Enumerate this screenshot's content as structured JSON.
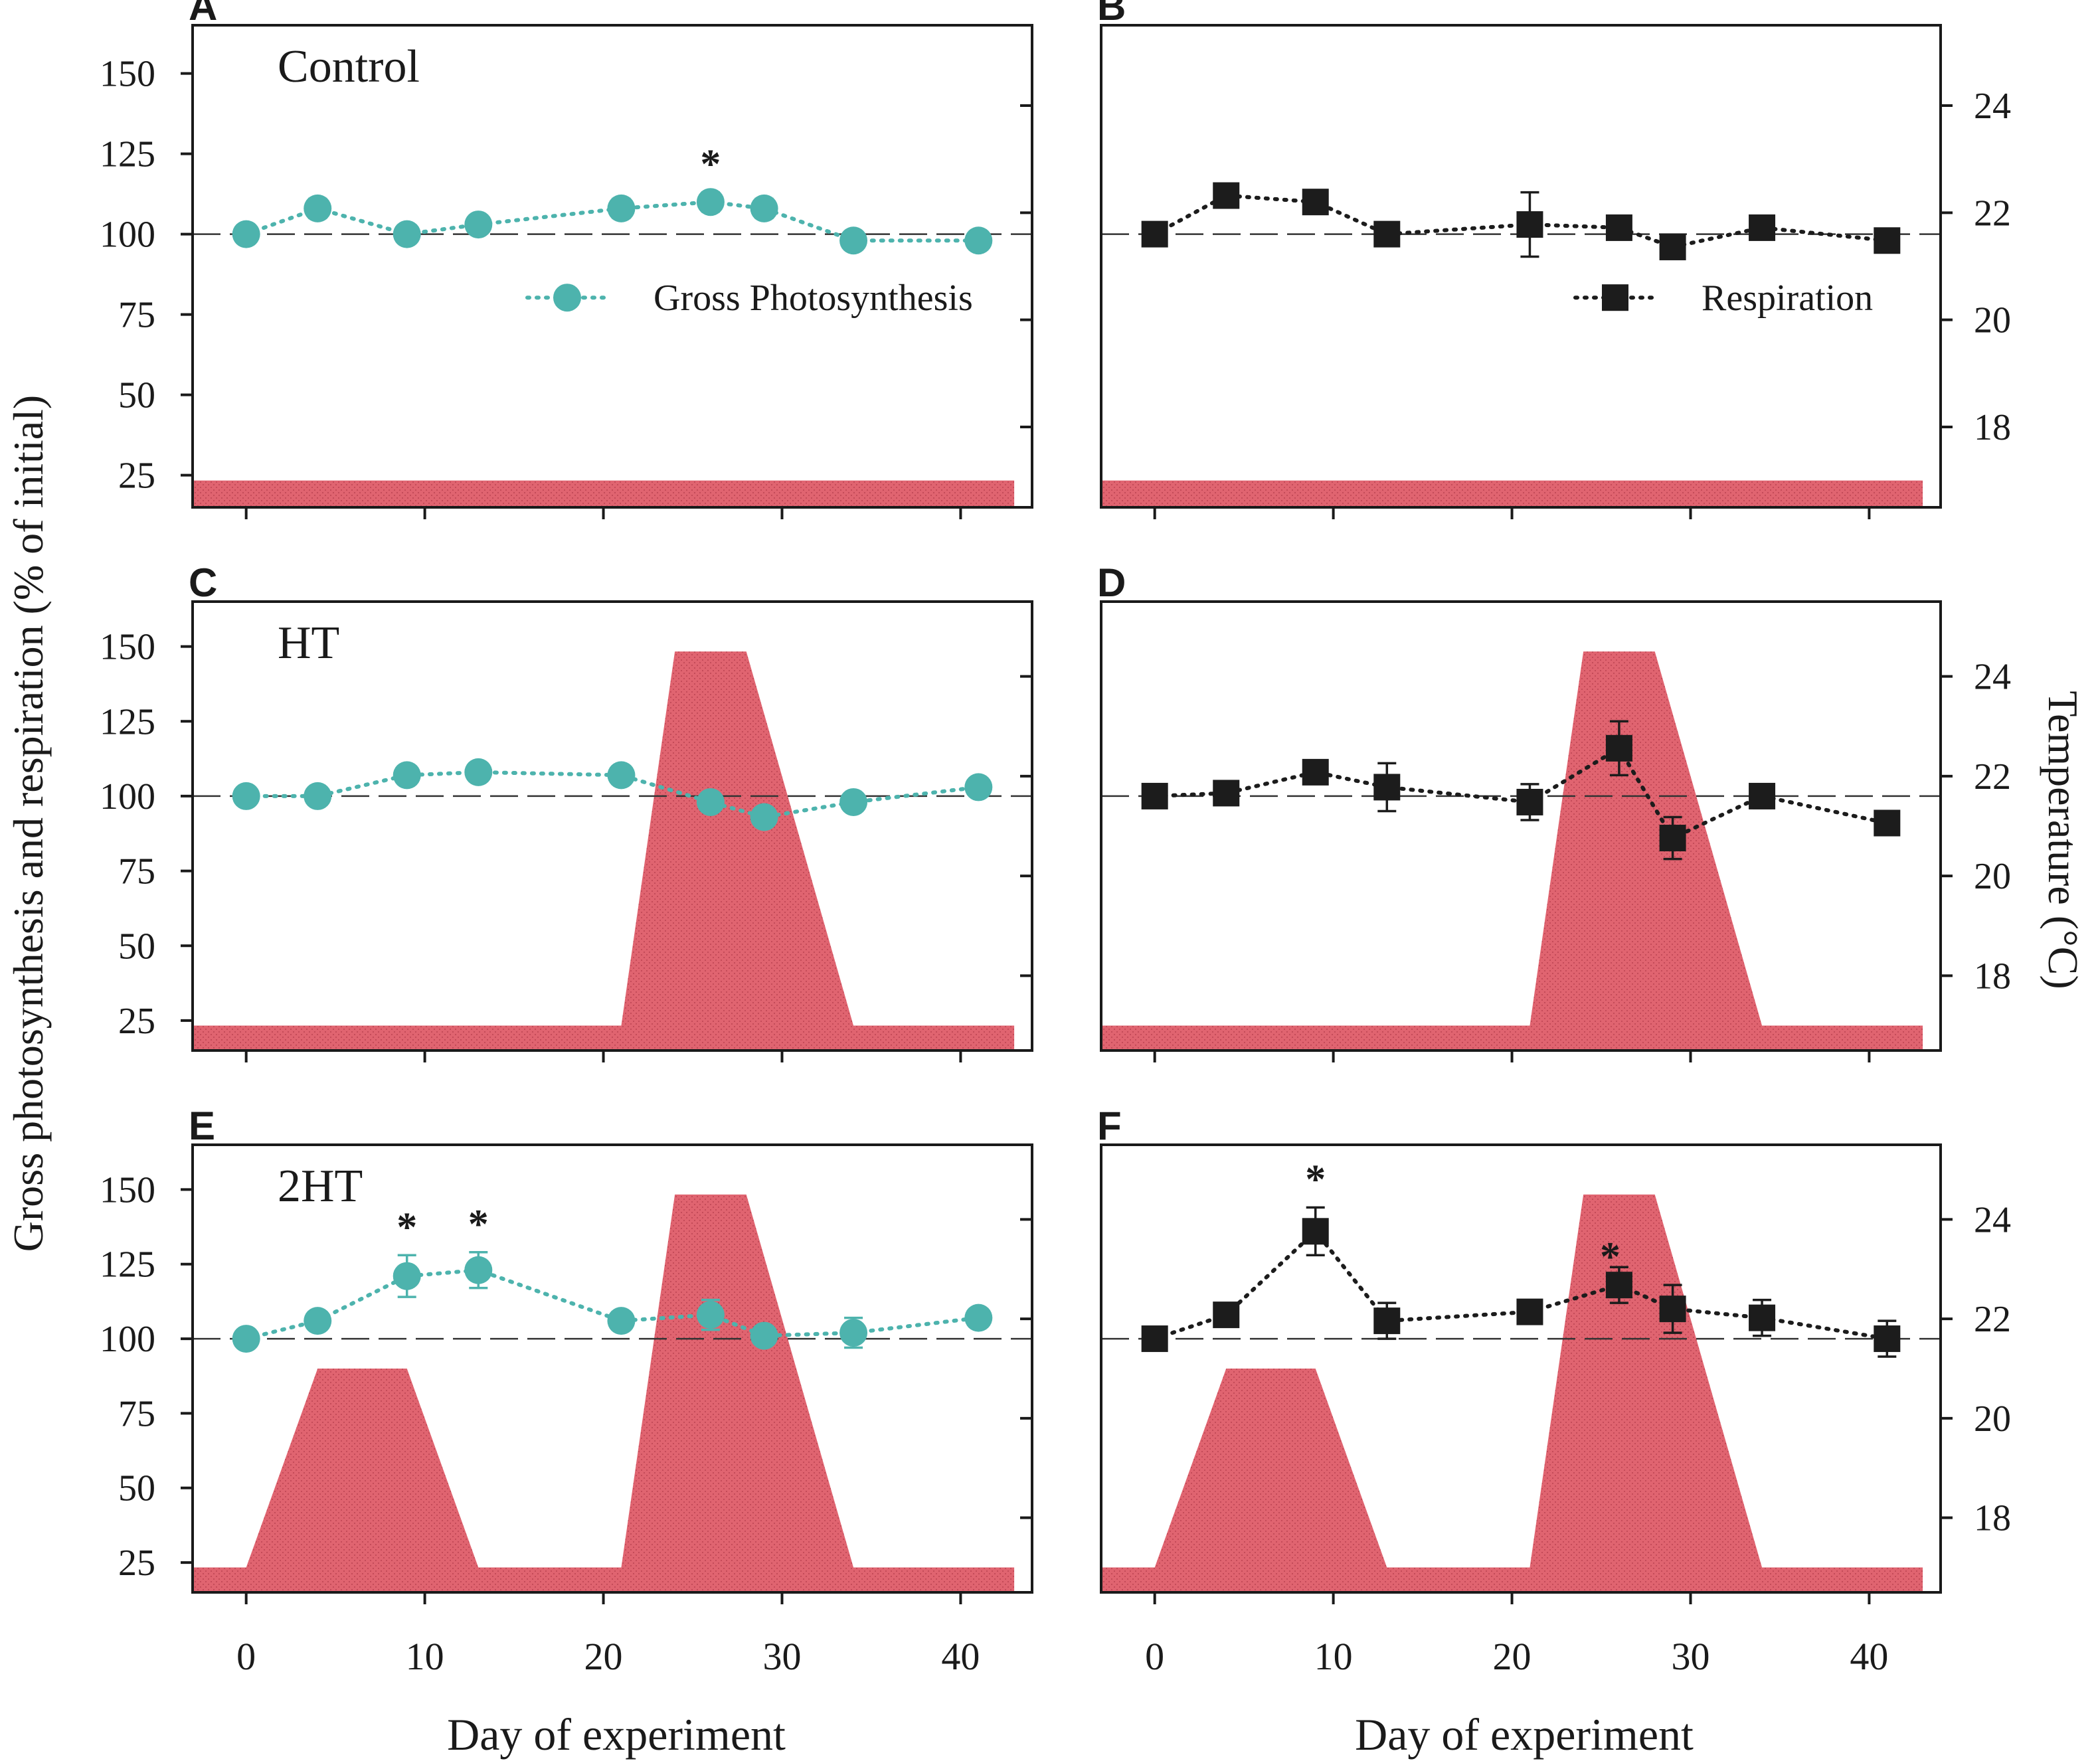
{
  "figure": {
    "ylabel": "Gross photosynthesis and respiration (% of initial)",
    "y2label": "Temperature (°C)",
    "xlabel": "Day of experiment"
  },
  "colors": {
    "photosynthesis": "#4db3ad",
    "respiration": "#1c1c1c",
    "temperature_fill": "#e06470",
    "temperature_dots": "#b03848",
    "axis": "#1a1a1a",
    "reference_line": "#333333"
  },
  "chart_data": [
    {
      "panel": "A",
      "type": "line",
      "treatment_label": "Control",
      "series_name": "Gross Photosynthesis",
      "marker": "circle",
      "legend_label": "Gross Photosynthesis",
      "legend_position": "bottom-right",
      "x": [
        0,
        4,
        9,
        13,
        21,
        26,
        29,
        34,
        41
      ],
      "y": [
        100,
        108,
        100,
        103,
        108,
        110,
        108,
        98,
        98
      ],
      "yerr": [
        2,
        3,
        2,
        2,
        3,
        3,
        3,
        2,
        2
      ],
      "significance": [
        {
          "day": 26,
          "label": "*"
        }
      ],
      "temperature": {
        "days": [
          -3,
          43
        ],
        "temps": [
          17,
          17
        ]
      },
      "xlim": [
        -3,
        44
      ],
      "ylim": [
        15,
        165
      ],
      "y2lim": [
        16.5,
        25.5
      ],
      "yticks": [
        25,
        50,
        75,
        100,
        125,
        150
      ],
      "y2ticks": [],
      "xticks": [
        0,
        10,
        20,
        30,
        40
      ],
      "reference_y": 100
    },
    {
      "panel": "B",
      "type": "line",
      "series_name": "Respiration",
      "marker": "square",
      "legend_label": "Respiration",
      "legend_position": "bottom-right",
      "x": [
        0,
        4,
        9,
        13,
        21,
        26,
        29,
        34,
        41
      ],
      "y": [
        100,
        112,
        110,
        100,
        103,
        102,
        96,
        102,
        98
      ],
      "yerr": [
        3,
        3,
        3,
        3,
        10,
        3,
        3,
        3,
        3
      ],
      "significance": [],
      "temperature": {
        "days": [
          -3,
          43
        ],
        "temps": [
          17,
          17
        ]
      },
      "xlim": [
        -3,
        44
      ],
      "ylim": [
        15,
        165
      ],
      "y2lim": [
        16.5,
        25.5
      ],
      "yticks": [],
      "y2ticks": [
        18,
        20,
        22,
        24
      ],
      "xticks": [
        0,
        10,
        20,
        30,
        40
      ],
      "reference_y": 100
    },
    {
      "panel": "C",
      "type": "line",
      "treatment_label": "HT",
      "series_name": "Gross Photosynthesis",
      "marker": "circle",
      "x": [
        0,
        4,
        9,
        13,
        21,
        26,
        29,
        34,
        41
      ],
      "y": [
        100,
        100,
        107,
        108,
        107,
        98,
        93,
        98,
        103
      ],
      "yerr": [
        2,
        2,
        3,
        3,
        3,
        3,
        2,
        2,
        3
      ],
      "significance": [],
      "temperature": {
        "days": [
          -3,
          21,
          24,
          28,
          34,
          43
        ],
        "temps": [
          17,
          17,
          24.5,
          24.5,
          17,
          17
        ]
      },
      "xlim": [
        -3,
        44
      ],
      "ylim": [
        15,
        165
      ],
      "y2lim": [
        16.5,
        25.5
      ],
      "yticks": [
        25,
        50,
        75,
        100,
        125,
        150
      ],
      "y2ticks": [],
      "xticks": [
        0,
        10,
        20,
        30,
        40
      ],
      "reference_y": 100
    },
    {
      "panel": "D",
      "type": "line",
      "series_name": "Respiration",
      "marker": "square",
      "x": [
        0,
        4,
        9,
        13,
        21,
        26,
        29,
        34,
        41
      ],
      "y": [
        100,
        101,
        108,
        103,
        98,
        116,
        86,
        100,
        91
      ],
      "yerr": [
        3,
        3,
        3,
        8,
        6,
        9,
        7,
        4,
        3
      ],
      "significance": [],
      "temperature": {
        "days": [
          -3,
          21,
          24,
          28,
          34,
          43
        ],
        "temps": [
          17,
          17,
          24.5,
          24.5,
          17,
          17
        ]
      },
      "xlim": [
        -3,
        44
      ],
      "ylim": [
        15,
        165
      ],
      "y2lim": [
        16.5,
        25.5
      ],
      "yticks": [],
      "y2ticks": [
        18,
        20,
        22,
        24
      ],
      "xticks": [
        0,
        10,
        20,
        30,
        40
      ],
      "reference_y": 100
    },
    {
      "panel": "E",
      "type": "line",
      "treatment_label": "2HT",
      "series_name": "Gross Photosynthesis",
      "marker": "circle",
      "x": [
        0,
        4,
        9,
        13,
        21,
        26,
        29,
        34,
        41
      ],
      "y": [
        100,
        106,
        121,
        123,
        106,
        108,
        101,
        102,
        107
      ],
      "yerr": [
        2,
        3,
        7,
        6,
        3,
        5,
        3,
        5,
        3
      ],
      "significance": [
        {
          "day": 9,
          "label": "*"
        },
        {
          "day": 13,
          "label": "*"
        }
      ],
      "temperature": {
        "days": [
          -3,
          0,
          4,
          9,
          13,
          21,
          24,
          28,
          34,
          43
        ],
        "temps": [
          17,
          17,
          21,
          21,
          17,
          17,
          24.5,
          24.5,
          17,
          17
        ]
      },
      "xlim": [
        -3,
        44
      ],
      "ylim": [
        15,
        165
      ],
      "y2lim": [
        16.5,
        25.5
      ],
      "yticks": [
        25,
        50,
        75,
        100,
        125,
        150
      ],
      "y2ticks": [],
      "xticks": [
        0,
        10,
        20,
        30,
        40
      ],
      "reference_y": 100
    },
    {
      "panel": "F",
      "type": "line",
      "series_name": "Respiration",
      "marker": "square",
      "x": [
        0,
        4,
        9,
        13,
        21,
        26,
        29,
        34,
        41
      ],
      "y": [
        100,
        108,
        136,
        106,
        109,
        118,
        110,
        107,
        100
      ],
      "yerr": [
        3,
        3,
        8,
        6,
        3,
        6,
        8,
        6,
        6
      ],
      "significance": [
        {
          "day": 9,
          "label": "*"
        },
        {
          "day": 25.5,
          "label": "*"
        }
      ],
      "temperature": {
        "days": [
          -3,
          0,
          4,
          9,
          13,
          21,
          24,
          28,
          34,
          43
        ],
        "temps": [
          17,
          17,
          21,
          21,
          17,
          17,
          24.5,
          24.5,
          17,
          17
        ]
      },
      "xlim": [
        -3,
        44
      ],
      "ylim": [
        15,
        165
      ],
      "y2lim": [
        16.5,
        25.5
      ],
      "yticks": [],
      "y2ticks": [
        18,
        20,
        22,
        24
      ],
      "xticks": [
        0,
        10,
        20,
        30,
        40
      ],
      "reference_y": 100
    }
  ]
}
